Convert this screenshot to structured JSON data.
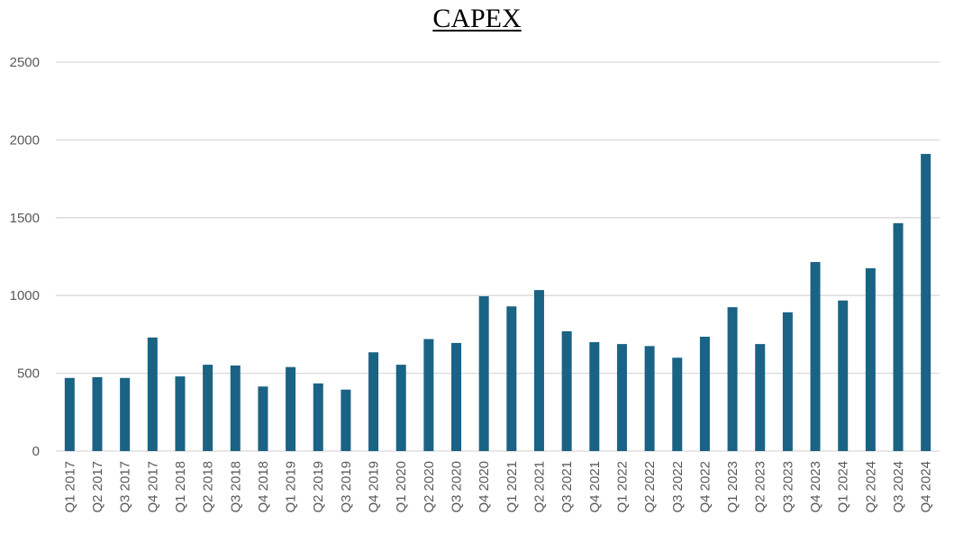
{
  "chart_data": {
    "type": "bar",
    "title": "CAPEX",
    "xlabel": "",
    "ylabel": "",
    "ylim": [
      0,
      2500
    ],
    "yticks": [
      0,
      500,
      1000,
      1500,
      2000,
      2500
    ],
    "grid": true,
    "legend": "none",
    "bar_color": "#1a6384",
    "grid_color": "#d9d9d9",
    "categories": [
      "Q1 2017",
      "Q2 2017",
      "Q3 2017",
      "Q4 2017",
      "Q1 2018",
      "Q2 2018",
      "Q3 2018",
      "Q4 2018",
      "Q1 2019",
      "Q2 2019",
      "Q3 2019",
      "Q4 2019",
      "Q1 2020",
      "Q2 2020",
      "Q3 2020",
      "Q4 2020",
      "Q1 2021",
      "Q2 2021",
      "Q3 2021",
      "Q4 2021",
      "Q1 2022",
      "Q2 2022",
      "Q3 2022",
      "Q4 2022",
      "Q1 2023",
      "Q2 2023",
      "Q3 2023",
      "Q4 2023",
      "Q1 2024",
      "Q2 2024",
      "Q3 2024",
      "Q4 2024"
    ],
    "values": [
      470,
      475,
      470,
      730,
      480,
      555,
      550,
      415,
      540,
      435,
      395,
      635,
      555,
      720,
      695,
      995,
      930,
      1035,
      770,
      700,
      688,
      675,
      600,
      735,
      925,
      688,
      892,
      1215,
      968,
      1175,
      1465,
      1910
    ]
  }
}
